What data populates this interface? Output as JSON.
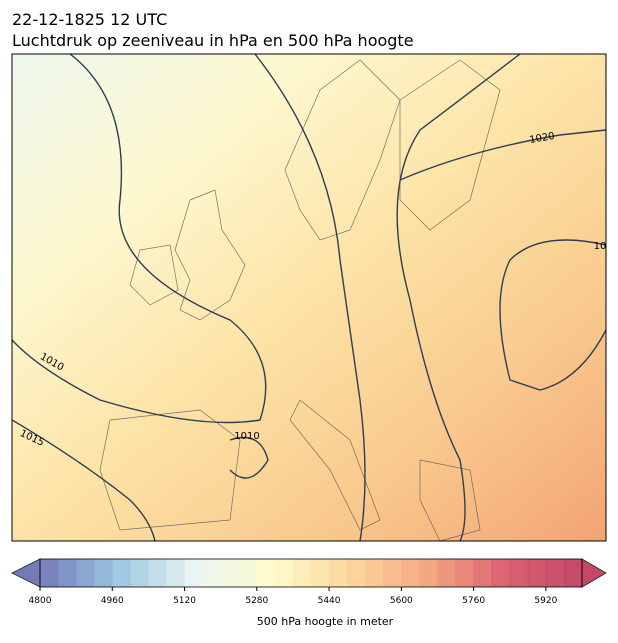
{
  "title": {
    "line1": "22-12-1825 12 UTC",
    "line2": "Luchtdruk op zeeniveau in hPa en 500 hPa hoogte"
  },
  "contour_labels": [
    "1020",
    "10",
    "1010",
    "1015",
    "1010"
  ],
  "colorbar": {
    "range": [
      4800,
      6000
    ],
    "step": 40,
    "ticks": [
      4800,
      4960,
      5120,
      5280,
      5440,
      5600,
      5760,
      5920
    ],
    "colormap": [
      "#5b63ad",
      "#8bbcdb",
      "#e6f4f0",
      "#fefbc4",
      "#fbcf8c",
      "#f39a6c",
      "#d4475a",
      "#b82a4e"
    ],
    "label": "500 hPa hoogte in meter"
  }
}
